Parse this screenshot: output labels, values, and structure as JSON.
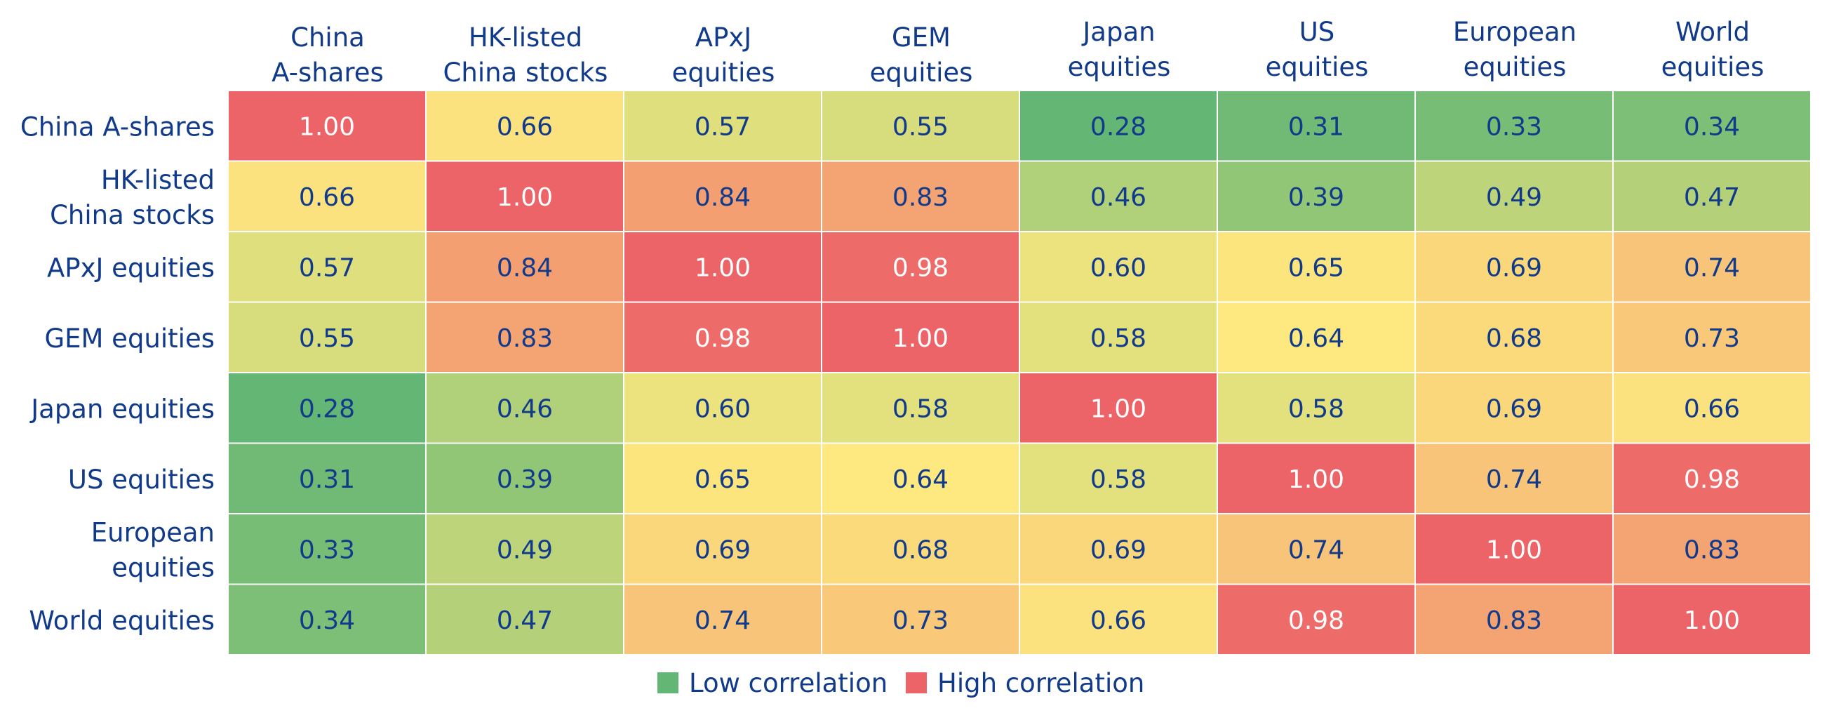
{
  "chart_data": {
    "type": "heatmap",
    "title": "",
    "columns": [
      [
        "China",
        "A-shares"
      ],
      [
        "HK-listed",
        "China stocks"
      ],
      [
        "APxJ",
        "equities"
      ],
      [
        "GEM",
        "equities"
      ],
      [
        "Japan",
        "equities"
      ],
      [
        "US",
        "equities"
      ],
      [
        "European",
        "equities"
      ],
      [
        "World",
        "equities"
      ]
    ],
    "rows": [
      [
        "China A-shares"
      ],
      [
        "HK-listed",
        "China stocks"
      ],
      [
        "APxJ equities"
      ],
      [
        "GEM equities"
      ],
      [
        "Japan equities"
      ],
      [
        "US equities"
      ],
      [
        "European",
        "equities"
      ],
      [
        "World equities"
      ]
    ],
    "values": [
      [
        1.0,
        0.66,
        0.57,
        0.55,
        0.28,
        0.31,
        0.33,
        0.34
      ],
      [
        0.66,
        1.0,
        0.84,
        0.83,
        0.46,
        0.39,
        0.49,
        0.47
      ],
      [
        0.57,
        0.84,
        1.0,
        0.98,
        0.6,
        0.65,
        0.69,
        0.74
      ],
      [
        0.55,
        0.83,
        0.98,
        1.0,
        0.58,
        0.64,
        0.68,
        0.73
      ],
      [
        0.28,
        0.46,
        0.6,
        0.58,
        1.0,
        0.58,
        0.69,
        0.66
      ],
      [
        0.31,
        0.39,
        0.65,
        0.64,
        0.58,
        1.0,
        0.74,
        0.98
      ],
      [
        0.33,
        0.49,
        0.69,
        0.68,
        0.69,
        0.74,
        1.0,
        0.83
      ],
      [
        0.34,
        0.47,
        0.74,
        0.73,
        0.66,
        0.98,
        0.83,
        1.0
      ]
    ],
    "value_format": "0.00",
    "color_scale": {
      "low_color": "#63b674",
      "mid_color": "#fde97f",
      "high_color": "#ec6468",
      "low_value": 0.28,
      "mid_value": 0.64,
      "high_value": 1.0
    },
    "legend": {
      "position": "bottom-center",
      "items": [
        {
          "label": "Low correlation",
          "color": "#63b674"
        },
        {
          "label": "High correlation",
          "color": "#ec6468"
        }
      ]
    },
    "label_color": "#123a8a",
    "cell_text_color": "#123a8a",
    "cell_text_color_high": "#ffffff"
  }
}
